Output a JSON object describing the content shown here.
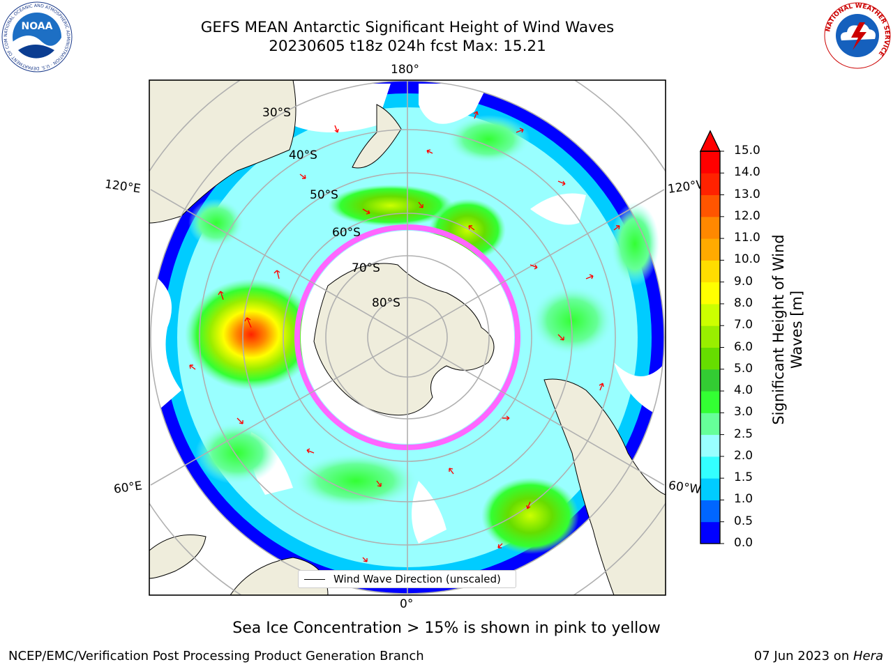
{
  "title": {
    "line1": "GEFS MEAN Antarctic Significant Height of Wind Waves",
    "line2": "20230605 t18z 024h fcst   Max: 15.21"
  },
  "map": {
    "projection": "south-polar-stereographic",
    "longitude_labels": [
      "180°",
      "120°E",
      "120°W",
      "60°E",
      "60°W",
      "0°"
    ],
    "latitude_labels": [
      "30°S",
      "40°S",
      "50°S",
      "60°S",
      "70°S",
      "80°S"
    ],
    "legend_label": "Wind Wave Direction (unscaled)",
    "arrow_color": "#ff0000",
    "land_color": "#efeddc",
    "sea_ice_colors": [
      "#ff66ff",
      "#ffff66"
    ]
  },
  "colorbar": {
    "label": "Significant Height of Wind Waves [m]",
    "ticks": [
      "0.0",
      "0.5",
      "1.0",
      "1.5",
      "2.0",
      "2.5",
      "3.0",
      "4.0",
      "5.0",
      "6.0",
      "7.0",
      "8.0",
      "9.0",
      "10.0",
      "11.0",
      "12.0",
      "13.0",
      "14.0",
      "15.0"
    ],
    "colors": [
      "#0000ff",
      "#0066ff",
      "#00ccff",
      "#33ffff",
      "#99ffff",
      "#66ff99",
      "#33ff33",
      "#33cc33",
      "#66dd00",
      "#99ee00",
      "#ccff00",
      "#ffff00",
      "#ffdd00",
      "#ffaa00",
      "#ff8800",
      "#ff5500",
      "#ff2200",
      "#ff0000"
    ],
    "extend": "max"
  },
  "note": "Sea Ice Concentration > 15% is shown in pink to yellow",
  "footer": {
    "left": "NCEP/EMC/Verification Post Processing Product Generation Branch",
    "date": "07 Jun 2023 on ",
    "machine": "Hera"
  },
  "logos": {
    "noaa_text": "NOAA",
    "noaa_ring": "NATIONAL OCEANIC AND ATMOSPHERIC ADMINISTRATION · U.S. DEPARTMENT OF COMMERCE",
    "nws_ring": "NATIONAL WEATHER SERVICE"
  }
}
